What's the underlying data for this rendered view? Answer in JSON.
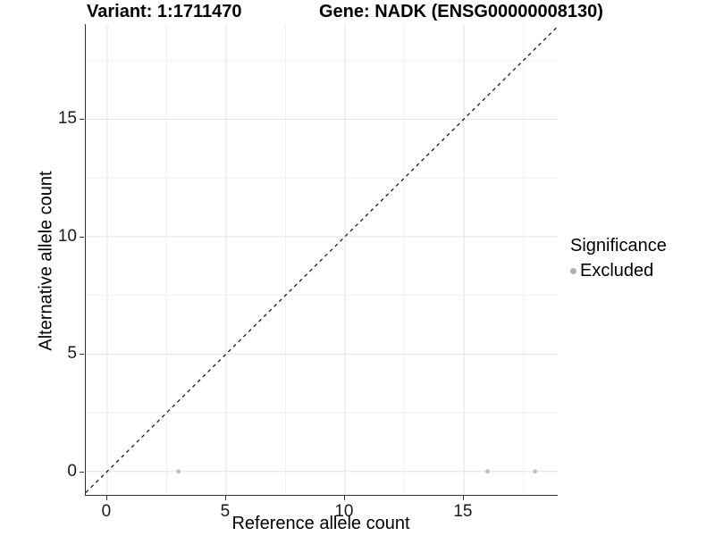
{
  "chart_data": {
    "type": "scatter",
    "titles": [
      "Variant: 1:1711470",
      "Gene: NADK (ENSG00000008130)"
    ],
    "xlabel": "Reference allele count",
    "ylabel": "Alternative allele count",
    "xlim": [
      -0.9,
      18.95
    ],
    "ylim": [
      -1.0,
      19.05
    ],
    "x_ticks": [
      0,
      5,
      10,
      15
    ],
    "y_ticks": [
      0,
      5,
      10,
      15
    ],
    "x_minor_gridlines": [
      2.5,
      7.5,
      12.5,
      17.5
    ],
    "y_minor_gridlines": [
      2.5,
      7.5,
      12.5,
      17.5
    ],
    "grid": "on",
    "reference_line": {
      "kind": "identity y=x",
      "style": "dashed",
      "color": "#1a1a1a"
    },
    "series": [
      {
        "name": "Excluded",
        "color": "#bebebe",
        "points": [
          [
            3,
            0
          ],
          [
            16,
            0
          ],
          [
            18,
            0
          ]
        ]
      }
    ],
    "legend": {
      "title": "Significance",
      "position": "right",
      "items": [
        {
          "label": "Excluded",
          "color": "#b0b0b0",
          "marker": "dot-icon"
        }
      ]
    }
  },
  "colors": {
    "background": "#ffffff",
    "axis_line": "#333333",
    "grid_major": "#e3e3e3",
    "grid_minor": "#f1f1f1",
    "tick_text": "#1a1a1a",
    "title_text": "#000000"
  }
}
